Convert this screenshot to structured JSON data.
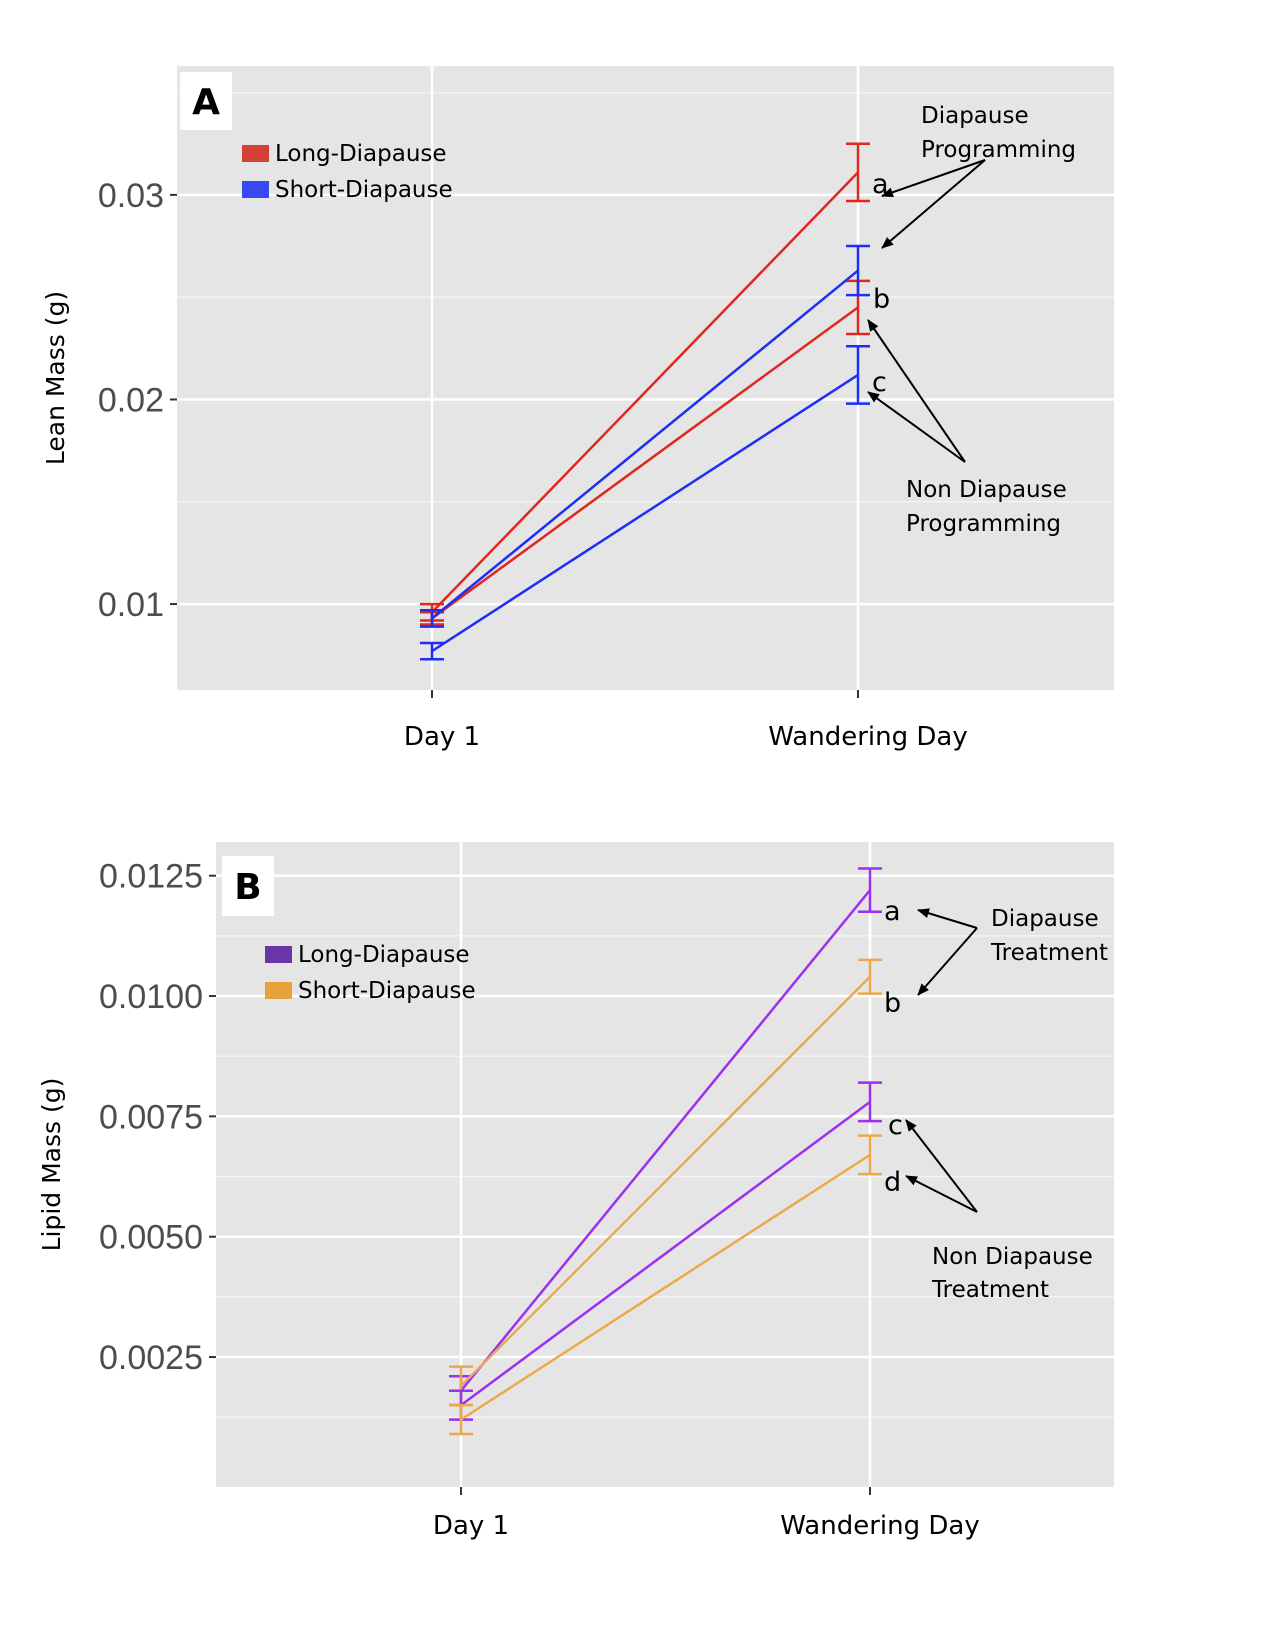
{
  "chart_data": [
    {
      "type": "line",
      "panel_label": "A",
      "ylabel": "Lean Mass (g)",
      "categories": [
        "Day 1",
        "Wandering Day"
      ],
      "ylim": [
        0.0058,
        0.0363
      ],
      "yticks": [
        0.01,
        0.02,
        0.03
      ],
      "ytick_labels": [
        "0.01",
        "0.02",
        "0.03"
      ],
      "grid": true,
      "legend": {
        "position": "top-left",
        "entries": [
          {
            "name": "Long-Diapause",
            "color": "#d43f3a"
          },
          {
            "name": "Short-Diapause",
            "color": "#3a47f5"
          }
        ]
      },
      "series": [
        {
          "group": "Long-Diapause",
          "color": "#e0271f",
          "values": [
            0.0096,
            0.0311
          ],
          "errors": [
            0.0004,
            0.0014
          ]
        },
        {
          "group": "Long-Diapause",
          "color": "#e0271f",
          "values": [
            0.0093,
            0.0245
          ],
          "errors": [
            0.0003,
            0.0013
          ]
        },
        {
          "group": "Short-Diapause",
          "color": "#1f2ef5",
          "values": [
            0.0093,
            0.0263
          ],
          "errors": [
            0.0004,
            0.0012
          ]
        },
        {
          "group": "Short-Diapause",
          "color": "#1f2ef5",
          "values": [
            0.0077,
            0.0212
          ],
          "errors": [
            0.0004,
            0.0014
          ]
        }
      ],
      "significance_labels": [
        "a",
        "b",
        "c"
      ],
      "annotations": [
        {
          "lines": [
            "Diapause",
            "Programming"
          ]
        },
        {
          "lines": [
            "Non Diapause",
            "Programming"
          ]
        }
      ]
    },
    {
      "type": "line",
      "panel_label": "B",
      "ylabel": "Lipid Mass (g)",
      "categories": [
        "Day 1",
        "Wandering Day"
      ],
      "ylim": [
        -0.0002,
        0.0132
      ],
      "yticks": [
        0.0025,
        0.005,
        0.0075,
        0.01,
        0.0125
      ],
      "ytick_labels": [
        "0.0025",
        "0.0050",
        "0.0075",
        "0.0100",
        "0.0125"
      ],
      "grid": true,
      "legend": {
        "position": "top-left",
        "entries": [
          {
            "name": "Long-Diapause",
            "color": "#6a35a8"
          },
          {
            "name": "Short-Diapause",
            "color": "#e6a23c"
          }
        ]
      },
      "series": [
        {
          "group": "Long-Diapause",
          "color": "#9b30f0",
          "values": [
            0.0018,
            0.0122
          ],
          "errors": [
            0.0003,
            0.00045
          ]
        },
        {
          "group": "Short-Diapause",
          "color": "#eba94a",
          "values": [
            0.0019,
            0.0104
          ],
          "errors": [
            0.0004,
            0.00035
          ]
        },
        {
          "group": "Long-Diapause",
          "color": "#9b30f0",
          "values": [
            0.0015,
            0.0078
          ],
          "errors": [
            0.0003,
            0.0004
          ]
        },
        {
          "group": "Short-Diapause",
          "color": "#eba94a",
          "values": [
            0.0012,
            0.0067
          ],
          "errors": [
            0.0003,
            0.0004
          ]
        }
      ],
      "significance_labels": [
        "a",
        "b",
        "c",
        "d"
      ],
      "annotations": [
        {
          "lines": [
            "Diapause",
            "Treatment"
          ]
        },
        {
          "lines": [
            "Non Diapause",
            "Treatment"
          ]
        }
      ]
    }
  ]
}
